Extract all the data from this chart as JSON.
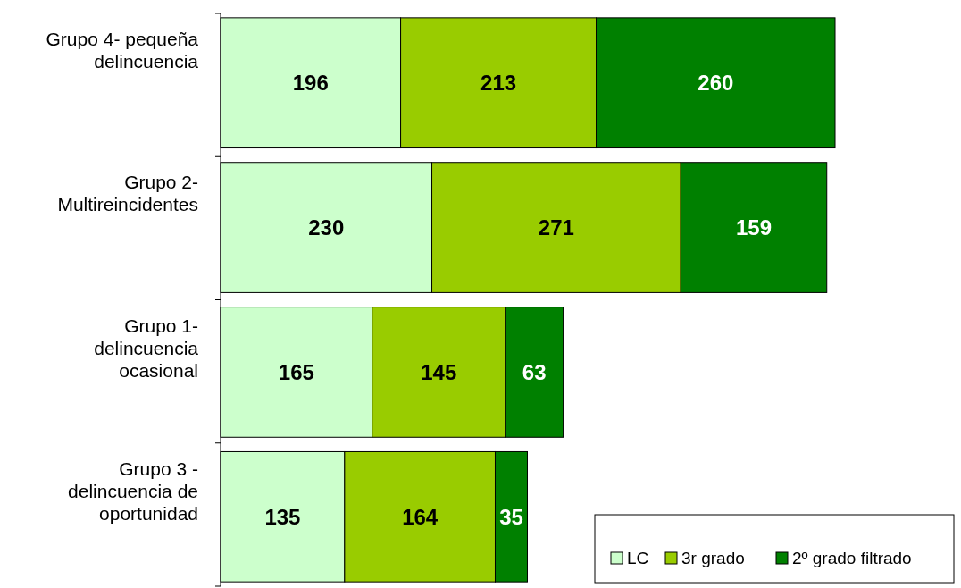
{
  "chart_data": {
    "type": "bar",
    "orientation": "horizontal",
    "stacked": true,
    "data_labels": true,
    "legend": "bottom right",
    "categories": [
      "Grupo 4- pequeña delincuencia",
      "Grupo 2- Multireincidentes",
      "Grupo 1- delincuencia ocasional",
      "Grupo 3 - delincuencia de oportunidad"
    ],
    "series": [
      {
        "name": "LC",
        "color": "#ccffcc",
        "values": [
          196,
          230,
          165,
          135
        ]
      },
      {
        "name": "3r grado",
        "color": "#99cc00",
        "values": [
          213,
          271,
          145,
          164
        ]
      },
      {
        "name": "2º grado filtrado",
        "color": "#008000",
        "values": [
          260,
          159,
          63,
          35
        ]
      }
    ]
  }
}
